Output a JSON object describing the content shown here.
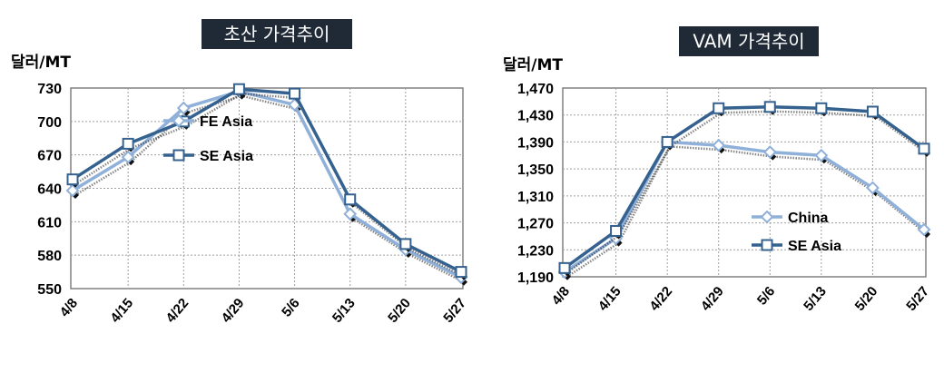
{
  "chart_data": [
    {
      "type": "line",
      "title": "초산 가격추이",
      "ylabel": "달러/MT",
      "categories": [
        "4/8",
        "4/15",
        "4/22",
        "4/29",
        "5/6",
        "5/13",
        "5/20",
        "5/27"
      ],
      "ylim": [
        550,
        730
      ],
      "yticks": [
        550,
        580,
        610,
        640,
        670,
        700,
        730
      ],
      "grid": true,
      "legend_position": "center",
      "series": [
        {
          "name": "FE Asia",
          "values": [
            638,
            668,
            712,
            727,
            715,
            617,
            585,
            560
          ],
          "color": "#8fb0d9",
          "marker": "diamond"
        },
        {
          "name": "SE Asia",
          "values": [
            648,
            680,
            700,
            729,
            725,
            630,
            590,
            565
          ],
          "color": "#35618f",
          "marker": "square"
        }
      ]
    },
    {
      "type": "line",
      "title": "VAM 가격추이",
      "ylabel": "달러/MT",
      "categories": [
        "4/8",
        "4/15",
        "4/22",
        "4/29",
        "5/6",
        "5/13",
        "5/20",
        "5/27"
      ],
      "ylim": [
        1190,
        1470
      ],
      "yticks": [
        1190,
        1230,
        1270,
        1310,
        1350,
        1390,
        1430,
        1470
      ],
      "ytick_labels": [
        "1,190",
        "1,230",
        "1,270",
        "1,310",
        "1,350",
        "1,390",
        "1,430",
        "1,470"
      ],
      "grid": true,
      "legend_position": "bottom-center",
      "series": [
        {
          "name": "China",
          "values": [
            1197,
            1247,
            1390,
            1385,
            1375,
            1370,
            1322,
            1260
          ],
          "color": "#8fb0d9",
          "marker": "diamond"
        },
        {
          "name": "SE Asia",
          "values": [
            1203,
            1258,
            1390,
            1440,
            1442,
            1440,
            1435,
            1380
          ],
          "color": "#35618f",
          "marker": "square"
        }
      ]
    }
  ]
}
